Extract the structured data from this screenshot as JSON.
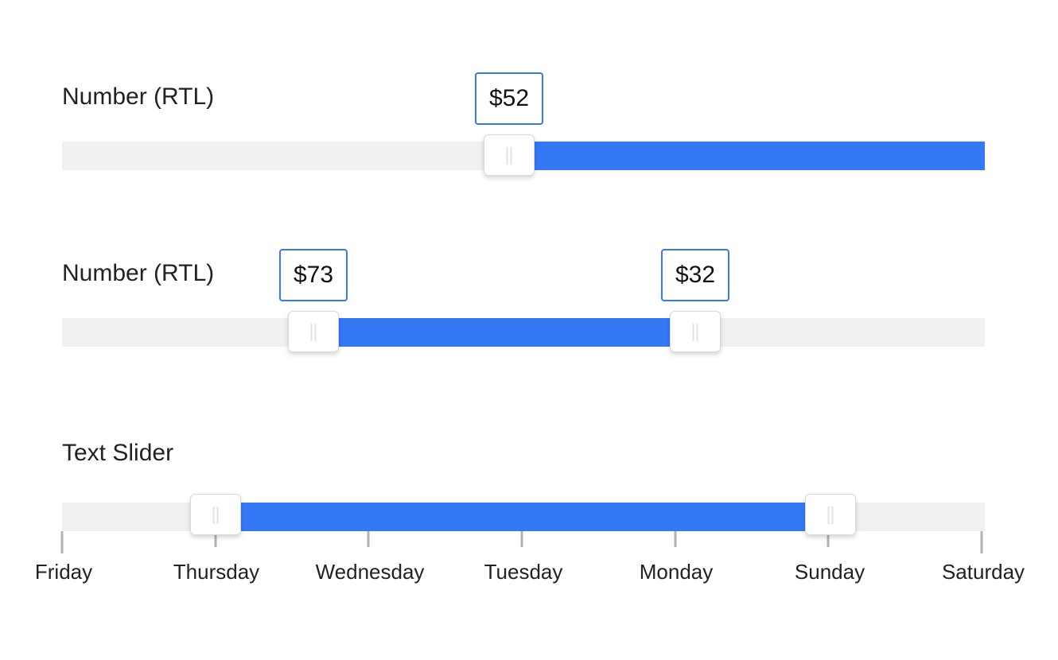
{
  "colors": {
    "accent": "#3478f6",
    "track": "#f0f0f0"
  },
  "sliders": [
    {
      "label": "Number (RTL)",
      "tooltips": [
        "$52"
      ],
      "fill_fraction_from_right": 0.5
    },
    {
      "label": "Number (RTL)",
      "tooltips": [
        "$73",
        "$32"
      ]
    },
    {
      "label": "Text Slider",
      "ticks": [
        "Friday",
        "Thursday",
        "Wednesday",
        "Tuesday",
        "Monday",
        "Sunday",
        "Saturday"
      ],
      "selected_start": "Thursday",
      "selected_end": "Sunday"
    }
  ]
}
